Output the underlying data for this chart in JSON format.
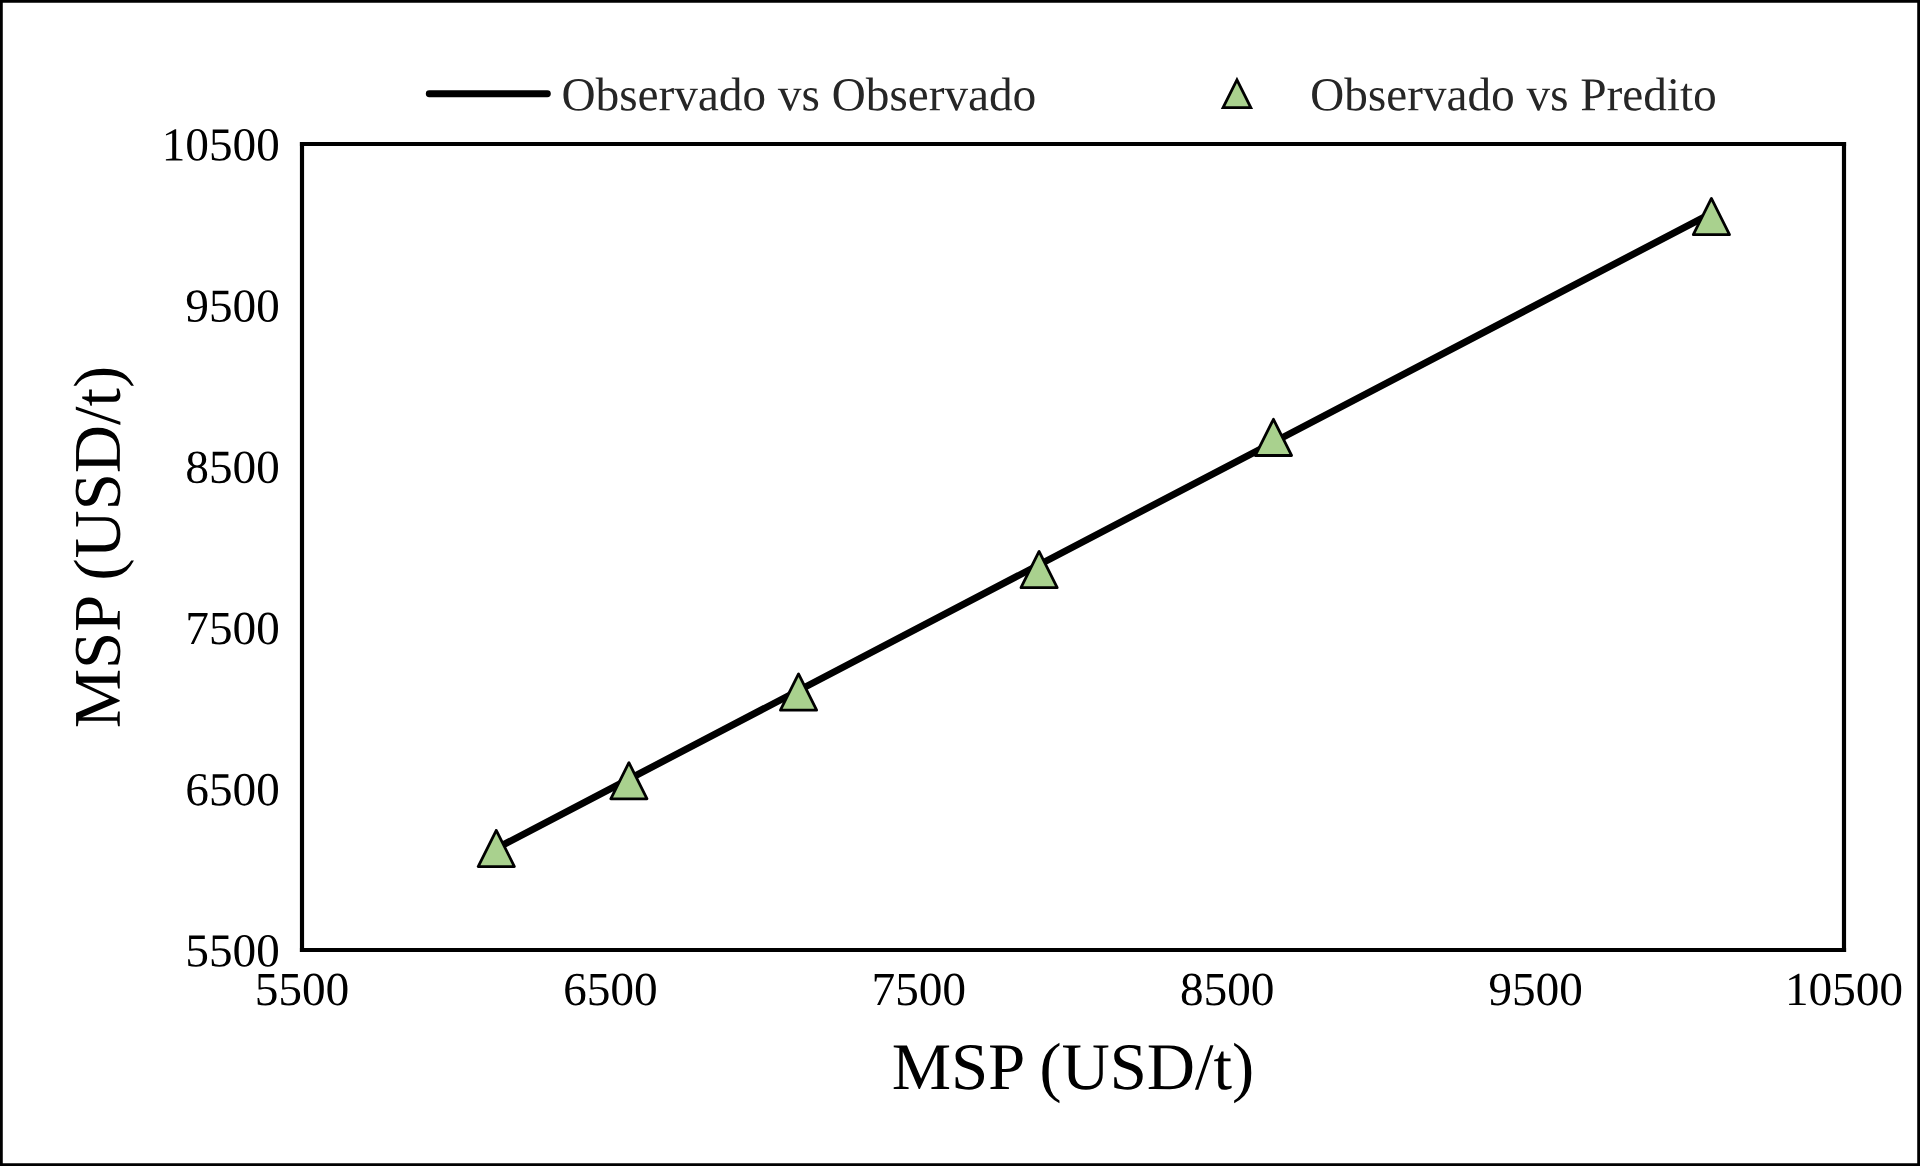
{
  "chart_data": {
    "type": "scatter",
    "xlabel": "MSP (USD/t)",
    "ylabel": "MSP (USD/t)",
    "x": [
      6130,
      6560,
      7110,
      7890,
      8650,
      10070
    ],
    "series": [
      {
        "name": "Observado vs Observado",
        "type": "line",
        "color": "#000000",
        "marker": "none",
        "line_style": "solid",
        "values": [
          6130,
          6560,
          7110,
          7890,
          8650,
          10070
        ]
      },
      {
        "name": "Observado vs Predito",
        "color": "#a9d18e",
        "marker": "triangle",
        "values": [
          6130,
          6550,
          7100,
          7860,
          8680,
          10050
        ]
      }
    ],
    "xlim": [
      5500,
      10500
    ],
    "xticks": [
      5500,
      6500,
      7500,
      8500,
      9500,
      10500
    ],
    "ylim": [
      5500,
      10500
    ],
    "yticks": [
      5500,
      6500,
      7500,
      8500,
      9500,
      10500
    ],
    "grid": false,
    "legend": "top"
  }
}
